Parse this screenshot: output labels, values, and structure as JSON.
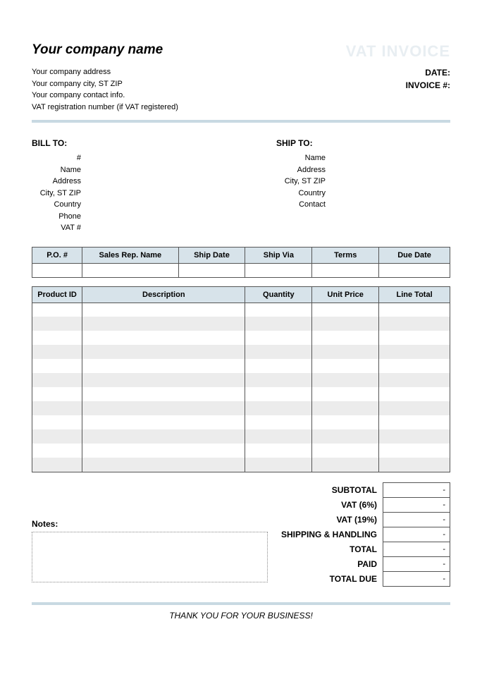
{
  "header": {
    "company_name": "Your company name",
    "invoice_title": "VAT INVOICE",
    "company_lines": [
      "Your company address",
      "Your company city, ST ZIP",
      "Your company contact info.",
      "VAT registration number (if VAT registered)"
    ],
    "date_label": "DATE:",
    "invoice_no_label": "INVOICE #:"
  },
  "bill_to": {
    "title": "BILL TO:",
    "labels": [
      "#",
      "Name",
      "Address",
      "City, ST ZIP",
      "Country",
      "Phone",
      "VAT #"
    ]
  },
  "ship_to": {
    "title": "SHIP TO:",
    "labels": [
      "",
      "Name",
      "Address",
      "City, ST ZIP",
      "Country",
      "Contact"
    ]
  },
  "order_table": {
    "columns": [
      "P.O. #",
      "Sales Rep. Name",
      "Ship Date",
      "Ship Via",
      "Terms",
      "Due Date"
    ],
    "col_widths": [
      "12%",
      "23%",
      "16%",
      "16%",
      "16%",
      "17%"
    ]
  },
  "items_table": {
    "columns": [
      "Product ID",
      "Description",
      "Quantity",
      "Unit Price",
      "Line Total"
    ],
    "col_widths": [
      "12%",
      "39%",
      "16%",
      "16%",
      "17%"
    ],
    "row_count": 12,
    "alt_row_bg": "#ececec",
    "header_bg": "#d7e3ea",
    "border_color": "#555555"
  },
  "totals": [
    {
      "label": "SUBTOTAL",
      "value": "-"
    },
    {
      "label": "VAT (6%)",
      "value": "-"
    },
    {
      "label": "VAT (19%)",
      "value": "-"
    },
    {
      "label": "SHIPPING & HANDLING",
      "value": "-"
    },
    {
      "label": "TOTAL",
      "value": "-"
    },
    {
      "label": "PAID",
      "value": "-"
    },
    {
      "label": "TOTAL DUE",
      "value": "-"
    }
  ],
  "notes_label": "Notes:",
  "footer": "THANK YOU FOR YOUR BUSINESS!",
  "colors": {
    "header_bg": "#d7e3ea",
    "divider": "#c8d9e2",
    "watermark_title": "#e8eef2",
    "alt_row": "#ececec"
  }
}
